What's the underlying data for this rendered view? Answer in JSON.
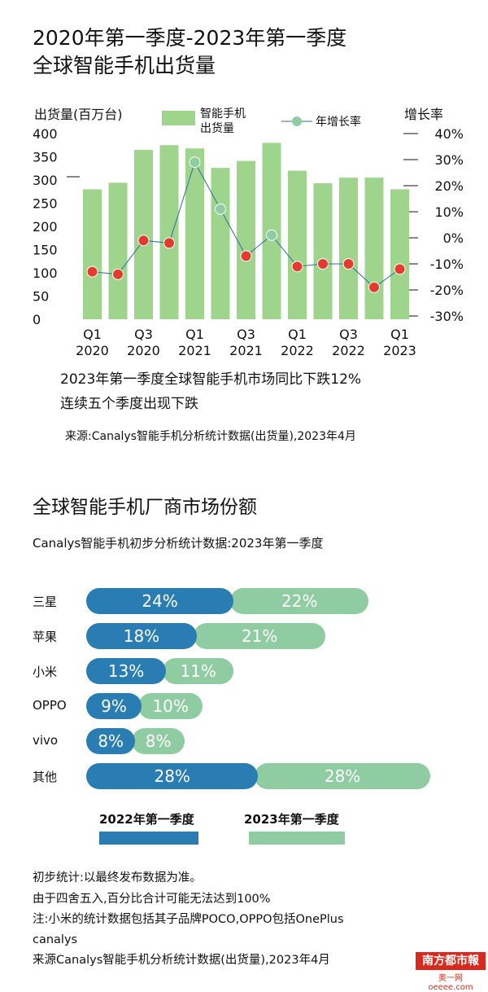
{
  "header": {
    "title_line1": "2020年第一季度-2023年第一季度",
    "title_line2": "全球智能手机出货量"
  },
  "chart_data": [
    {
      "type": "bar+line",
      "y_left_label": "出货量(百万台)",
      "y_right_label": "增长率",
      "y_left_ticks": [
        "400",
        "350",
        "300",
        "250",
        "200",
        "150",
        "100",
        "50",
        "0"
      ],
      "y_left_range": [
        0,
        400
      ],
      "y_right_ticks": [
        "40%",
        "30%",
        "20%",
        "10%",
        "0%",
        "-10%",
        "-20%",
        "-30%"
      ],
      "y_right_range": [
        -30,
        40
      ],
      "legend_bar": [
        "智能手机",
        "出货量"
      ],
      "legend_line": "年增长率",
      "x_labels": [
        {
          "q": "Q1",
          "y": "2020",
          "index": 0
        },
        {
          "q": "Q3",
          "y": "2020",
          "index": 2
        },
        {
          "q": "Q1",
          "y": "2021",
          "index": 4
        },
        {
          "q": "Q3",
          "y": "2021",
          "index": 6
        },
        {
          "q": "Q1",
          "y": "2022",
          "index": 8
        },
        {
          "q": "Q3",
          "y": "2022",
          "index": 10
        },
        {
          "q": "Q1",
          "y": "2023",
          "index": 12
        }
      ],
      "shipments": [
        280,
        294,
        365,
        375,
        368,
        326,
        341,
        380,
        320,
        293,
        305,
        305,
        280
      ],
      "growth": [
        -13,
        -14,
        -1,
        -2,
        29,
        11,
        -7,
        1,
        -11,
        -10,
        -10,
        -19,
        -12
      ],
      "bar_color": "#9fd48c",
      "line_color": "#2f6f9e",
      "point_colors": {
        "negative": "#e53b2f",
        "positive": "#8fcca2"
      }
    },
    {
      "type": "bar",
      "title": "全球智能手机厂商市场份额",
      "subtitle": "Canalys智能手机初步分析统计数据:2023年第一季度",
      "categories": [
        "三星",
        "苹果",
        "小米",
        "OPPO",
        "vivo",
        "其他"
      ],
      "series": [
        {
          "name": "2022年第一季度",
          "values": [
            24,
            18,
            13,
            9,
            8,
            28
          ],
          "labels": [
            "24%",
            "18%",
            "13%",
            "9%",
            "8%",
            "28%"
          ],
          "color": "#2a7db3"
        },
        {
          "name": "2023年第一季度",
          "values": [
            22,
            21,
            11,
            10,
            8,
            28
          ],
          "labels": [
            "22%",
            "21%",
            "11%",
            "10%",
            "8%",
            "28%"
          ],
          "color": "#8fcca2"
        }
      ]
    }
  ],
  "summary": {
    "line1": "2023年第一季度全球智能手机市场同比下跌12%",
    "line2": "连续五个季度出现下跌",
    "source": "来源:Canalys智能手机分析统计数据(出货量),2023年4月"
  },
  "notes": [
    "初步统计:以最终发布数据为准。",
    "由于四舍五入,百分比合计可能无法达到100%",
    "注:小米的统计数据包括其子品牌POCO,OPPO包括OnePlus",
    "canalys",
    "来源Canalys智能手机分析统计数据(出货量),2023年4月"
  ],
  "logo": {
    "name": "南方都市報",
    "sub": "奥一网 oeeee.com"
  }
}
